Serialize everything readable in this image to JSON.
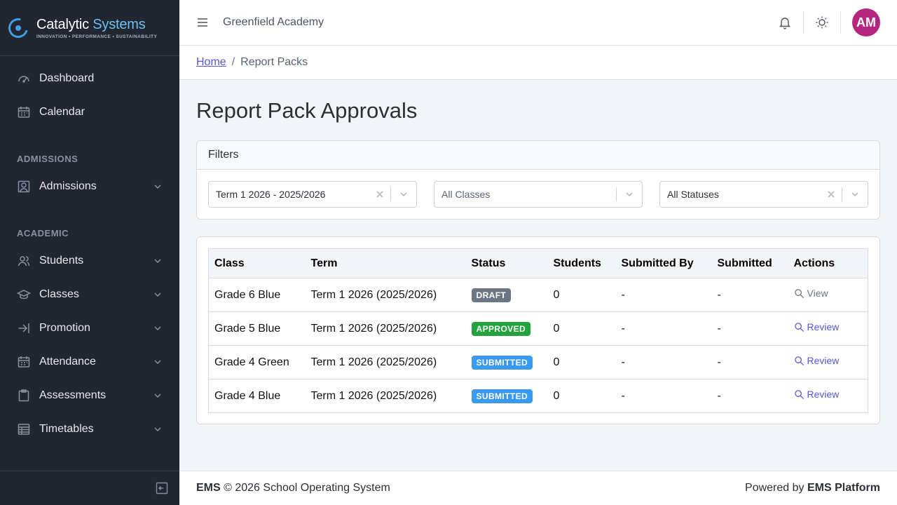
{
  "brand": {
    "name_main": "Catalytic",
    "name_accent": "Systems",
    "tagline": "INNOVATION • PERFORMANCE • SUSTAINABILITY",
    "accent_color": "#3ea0e8"
  },
  "sidebar": {
    "items": [
      {
        "label": "Dashboard",
        "icon": "speedometer-icon"
      },
      {
        "label": "Calendar",
        "icon": "calendar-icon"
      }
    ],
    "sections": [
      {
        "title": "ADMISSIONS",
        "items": [
          {
            "label": "Admissions",
            "icon": "user-square-icon"
          }
        ]
      },
      {
        "title": "ACADEMIC",
        "items": [
          {
            "label": "Students",
            "icon": "people-icon"
          },
          {
            "label": "Classes",
            "icon": "school-icon"
          },
          {
            "label": "Promotion",
            "icon": "arrow-right-icon"
          },
          {
            "label": "Attendance",
            "icon": "calendar-check-icon"
          },
          {
            "label": "Assessments",
            "icon": "clipboard-icon"
          },
          {
            "label": "Timetables",
            "icon": "table-icon"
          }
        ]
      }
    ]
  },
  "header": {
    "org_name": "Greenfield Academy",
    "avatar_initials": "AM",
    "avatar_color": "#b5267e"
  },
  "breadcrumb": {
    "home": "Home",
    "separator": "/",
    "current": "Report Packs"
  },
  "page": {
    "title": "Report Pack Approvals"
  },
  "filters": {
    "title": "Filters",
    "term": {
      "value": "Term 1 2026 - 2025/2026"
    },
    "class": {
      "placeholder": "All Classes"
    },
    "status": {
      "value": "All Statuses"
    }
  },
  "table": {
    "columns": [
      "Class",
      "Term",
      "Status",
      "Students",
      "Submitted By",
      "Submitted",
      "Actions"
    ],
    "rows": [
      {
        "class": "Grade 6 Blue",
        "term": "Term 1 2026 (2025/2026)",
        "status": "DRAFT",
        "status_color": "#6b7785",
        "students": "0",
        "submitted_by": "-",
        "submitted": "-",
        "action": "View"
      },
      {
        "class": "Grade 5 Blue",
        "term": "Term 1 2026 (2025/2026)",
        "status": "APPROVED",
        "status_color": "#22a33c",
        "students": "0",
        "submitted_by": "-",
        "submitted": "-",
        "action": "Review"
      },
      {
        "class": "Grade 4 Green",
        "term": "Term 1 2026 (2025/2026)",
        "status": "SUBMITTED",
        "status_color": "#3a99f0",
        "students": "0",
        "submitted_by": "-",
        "submitted": "-",
        "action": "Review"
      },
      {
        "class": "Grade 4 Blue",
        "term": "Term 1 2026 (2025/2026)",
        "status": "SUBMITTED",
        "status_color": "#3a99f0",
        "students": "0",
        "submitted_by": "-",
        "submitted": "-",
        "action": "Review"
      }
    ]
  },
  "footer": {
    "brand": "EMS",
    "copyright": "© 2026 School Operating System",
    "powered_prefix": "Powered by",
    "powered_brand": "EMS Platform"
  }
}
